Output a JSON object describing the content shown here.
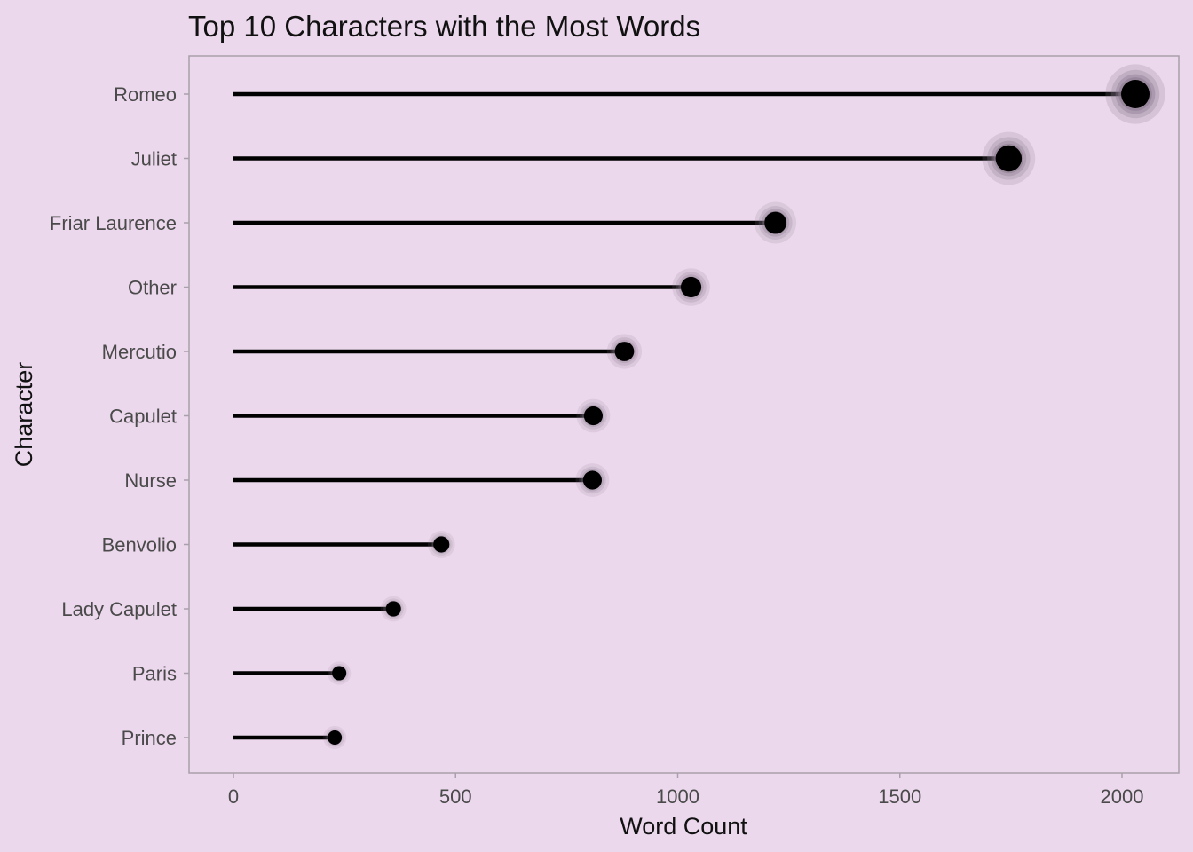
{
  "chart_data": {
    "type": "lollipop",
    "title": "Top 10 Characters with the Most Words",
    "xlabel": "Word Count",
    "ylabel": "Character",
    "xlim": [
      -100,
      2130
    ],
    "xticks": [
      0,
      500,
      1000,
      1500,
      2000
    ],
    "xtick_labels": [
      "0",
      "500",
      "1000",
      "1500",
      "2000"
    ],
    "grid": false,
    "legend": "none",
    "categories": [
      "Romeo",
      "Juliet",
      "Friar Laurence",
      "Other",
      "Mercutio",
      "Capulet",
      "Nurse",
      "Benvolio",
      "Lady Capulet",
      "Paris",
      "Prince"
    ],
    "values": [
      2030,
      1745,
      1220,
      1030,
      880,
      810,
      808,
      468,
      360,
      238,
      228
    ],
    "colors": {
      "background": "#ecd8ec",
      "stem": "#000000",
      "point": "#000000",
      "halo": "#8a7a8e",
      "frame": "#a8a0aa"
    }
  }
}
